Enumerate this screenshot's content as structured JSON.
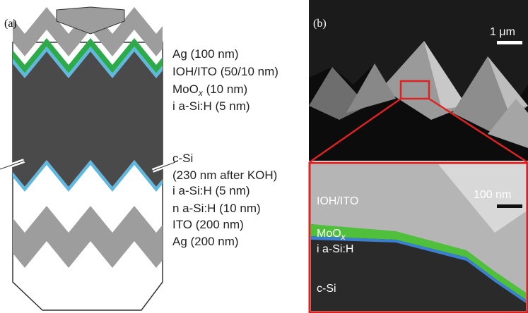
{
  "panel_a": {
    "label": "(a)",
    "layers": [
      "Ag (100 nm)",
      "IOH/ITO (50/10 nm)",
      "MoO",
      "x",
      " (10 nm)",
      "i a-Si:H (5 nm)",
      "c-Si",
      "(230 nm after KOH)",
      "i a-Si:H (5 nm)",
      "n a-Si:H (10 nm)",
      "ITO (200 nm)",
      "Ag (200 nm)"
    ]
  },
  "panel_b": {
    "label": "(b)",
    "scale_top": "1 μm",
    "scale_inset": "100 nm",
    "inset_labels": [
      "IOH/ITO",
      "MoO",
      "x",
      "i a-Si:H",
      "c-Si"
    ]
  }
}
